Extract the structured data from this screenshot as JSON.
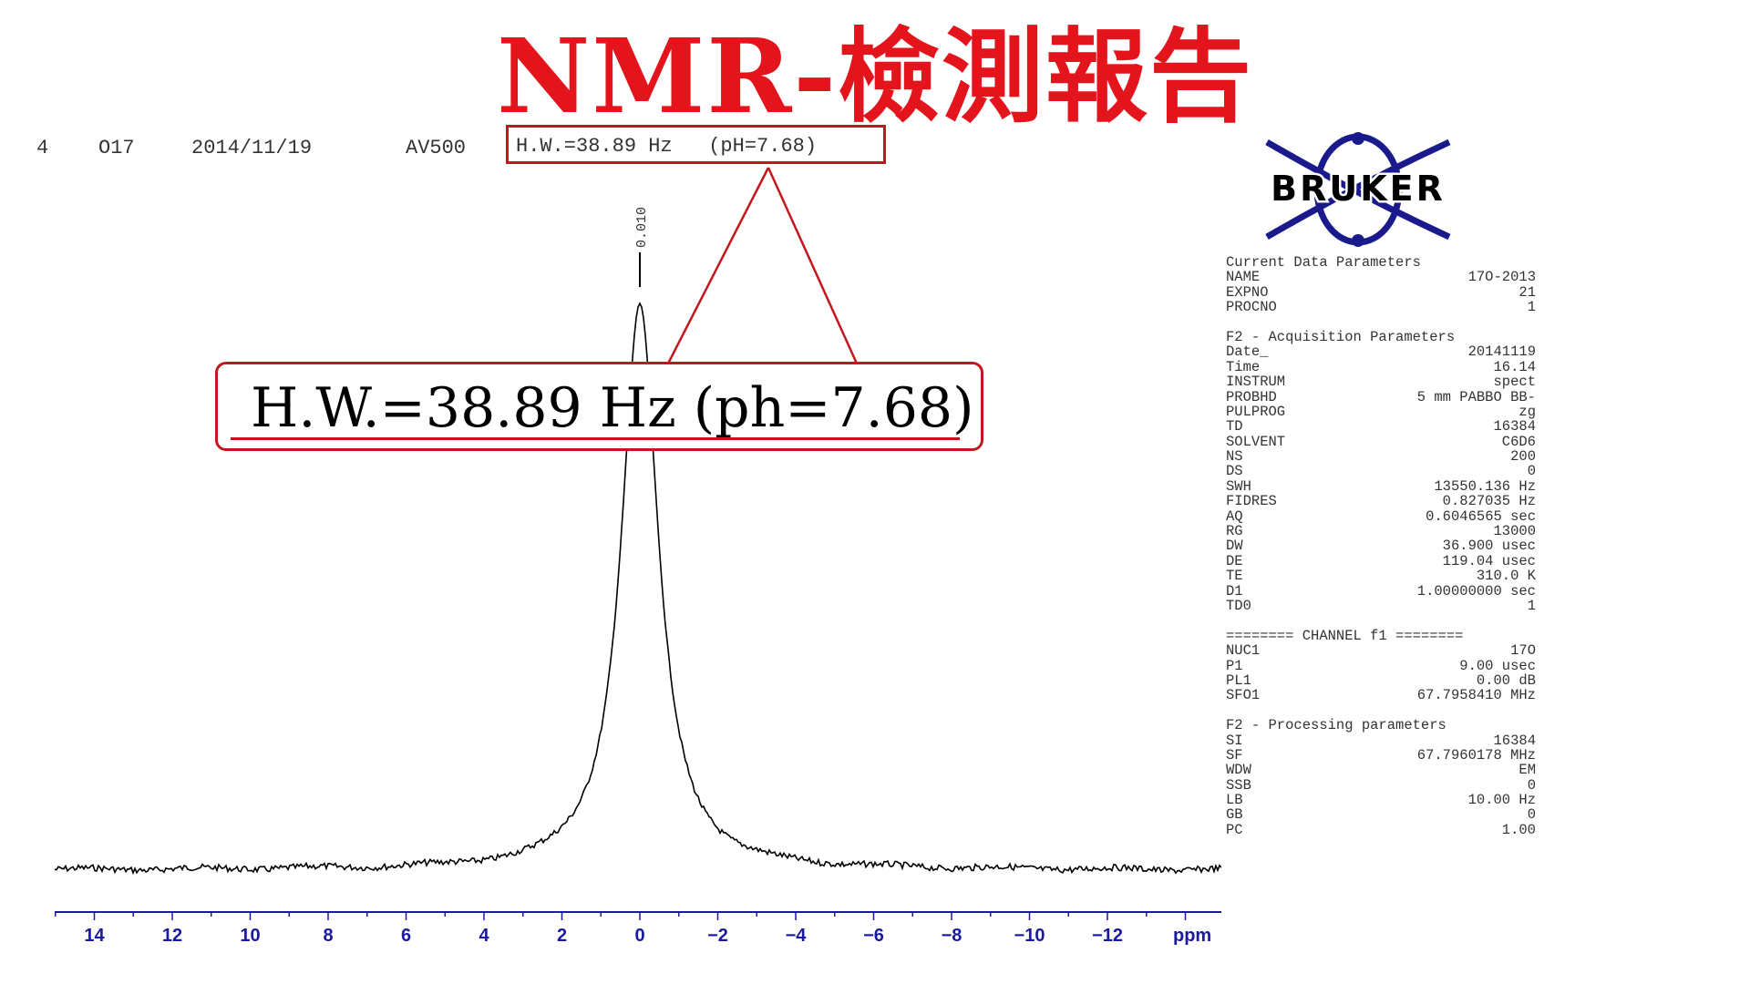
{
  "title": "NMR-檢測報告",
  "header": {
    "items": [
      "4",
      "O17",
      "2014/11/19",
      "AV500"
    ],
    "hw_text": "H.W.=38.89 Hz   (pH=7.68)"
  },
  "callout": {
    "text": "H.W.=38.89 Hz (ph=7.68)"
  },
  "logo": {
    "text": "BRUKER",
    "color": "#1a1a8c"
  },
  "colors": {
    "accent": "#c4171d",
    "title": "#e3141c",
    "axis": "#1a1aa0"
  },
  "chart_data": {
    "type": "line",
    "xlabel": "ppm",
    "xlim": [
      15,
      -15
    ],
    "reversed_x": true,
    "ticks": [
      14,
      12,
      10,
      8,
      6,
      4,
      2,
      0,
      -2,
      -4,
      -6,
      -8,
      -10,
      -12
    ],
    "tick_labels": [
      "14",
      "12",
      "10",
      "8",
      "6",
      "4",
      "2",
      "0",
      "−2",
      "−4",
      "−6",
      "−8",
      "−10",
      "−12"
    ],
    "peaks": [
      {
        "ppm": 0.0,
        "label": "0.010"
      }
    ],
    "series": [
      {
        "shape": "lorentzian",
        "center_ppm": 0.0,
        "half_width_hz": 38.89,
        "sf_mhz": 67.7960178,
        "relative_height": 1.0
      }
    ],
    "grid": false
  },
  "params": {
    "groups": [
      {
        "head": "Current Data Parameters",
        "rows": [
          {
            "k": "NAME",
            "v": "17O-2013"
          },
          {
            "k": "EXPNO",
            "v": "21"
          },
          {
            "k": "PROCNO",
            "v": "1"
          }
        ]
      },
      {
        "head": "F2 - Acquisition Parameters",
        "rows": [
          {
            "k": "Date_",
            "v": "20141119"
          },
          {
            "k": "Time",
            "v": "16.14"
          },
          {
            "k": "INSTRUM",
            "v": "spect"
          },
          {
            "k": "PROBHD",
            "v": "5 mm PABBO BB-"
          },
          {
            "k": "PULPROG",
            "v": "zg"
          },
          {
            "k": "TD",
            "v": "16384"
          },
          {
            "k": "SOLVENT",
            "v": "C6D6"
          },
          {
            "k": "NS",
            "v": "200"
          },
          {
            "k": "DS",
            "v": "0"
          },
          {
            "k": "SWH",
            "v": "13550.136 Hz"
          },
          {
            "k": "FIDRES",
            "v": "0.827035 Hz"
          },
          {
            "k": "AQ",
            "v": "0.6046565 sec"
          },
          {
            "k": "RG",
            "v": "13000"
          },
          {
            "k": "DW",
            "v": "36.900 usec"
          },
          {
            "k": "DE",
            "v": "119.04 usec"
          },
          {
            "k": "TE",
            "v": "310.0 K"
          },
          {
            "k": "D1",
            "v": "1.00000000 sec"
          },
          {
            "k": "TD0",
            "v": "1"
          }
        ]
      },
      {
        "head": "======== CHANNEL f1 ========",
        "rows": [
          {
            "k": "NUC1",
            "v": "17O"
          },
          {
            "k": "P1",
            "v": "9.00 usec"
          },
          {
            "k": "PL1",
            "v": "0.00 dB"
          },
          {
            "k": "SFO1",
            "v": "67.7958410 MHz"
          }
        ]
      },
      {
        "head": "F2 - Processing parameters",
        "rows": [
          {
            "k": "SI",
            "v": "16384"
          },
          {
            "k": "SF",
            "v": "67.7960178 MHz"
          },
          {
            "k": "WDW",
            "v": "EM"
          },
          {
            "k": "SSB",
            "v": "0"
          },
          {
            "k": "LB",
            "v": "10.00 Hz"
          },
          {
            "k": "GB",
            "v": "0"
          },
          {
            "k": "PC",
            "v": "1.00"
          }
        ]
      }
    ]
  }
}
